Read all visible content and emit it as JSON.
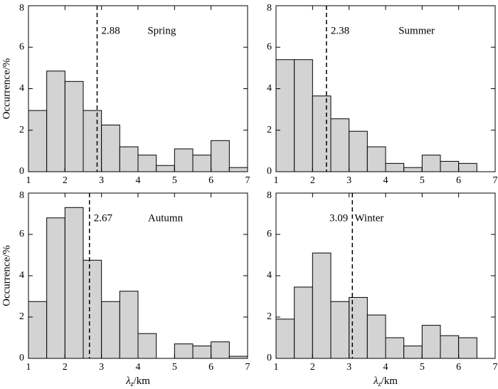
{
  "chart_data": [
    {
      "type": "histogram",
      "title": "Spring",
      "median": 2.88,
      "bins": [
        1,
        1.5,
        2,
        2.5,
        3,
        3.5,
        4,
        4.5,
        5,
        5.5,
        6,
        6.5,
        7
      ],
      "values": [
        2.95,
        4.85,
        4.35,
        2.95,
        2.25,
        1.2,
        0.8,
        0.3,
        1.1,
        0.8,
        1.5,
        0.2
      ],
      "color": "#d3d3d3",
      "ylabel": "Occurrence/%",
      "xlim": [
        1,
        7
      ],
      "ylim": [
        0,
        8
      ],
      "xticks": [
        1,
        2,
        3,
        4,
        5,
        6,
        7
      ],
      "yticks": [
        0,
        2,
        4,
        6,
        8
      ]
    },
    {
      "type": "histogram",
      "title": "Summer",
      "median": 2.38,
      "bins": [
        1,
        1.5,
        2,
        2.5,
        3,
        3.5,
        4,
        4.5,
        5,
        5.5,
        6,
        6.5,
        7
      ],
      "values": [
        5.4,
        5.4,
        3.65,
        2.55,
        1.95,
        1.2,
        0.4,
        0.2,
        0.8,
        0.5,
        0.4,
        0
      ],
      "color": "#d3d3d3",
      "xlim": [
        1,
        7
      ],
      "ylim": [
        0,
        8
      ],
      "xticks": [
        1,
        2,
        3,
        4,
        5,
        6,
        7
      ],
      "yticks": [
        0,
        2,
        4,
        6,
        8
      ]
    },
    {
      "type": "histogram",
      "title": "Autumn",
      "median": 2.67,
      "bins": [
        1,
        1.5,
        2,
        2.5,
        3,
        3.5,
        4,
        4.5,
        5,
        5.5,
        6,
        6.5,
        7
      ],
      "values": [
        2.75,
        6.8,
        7.3,
        4.75,
        2.75,
        3.25,
        1.2,
        0,
        0.7,
        0.6,
        0.8,
        0.1
      ],
      "color": "#d3d3d3",
      "ylabel": "Occurrence/%",
      "xlabel": [
        "λ",
        "z",
        "/km"
      ],
      "xlim": [
        1,
        7
      ],
      "ylim": [
        0,
        8
      ],
      "xticks": [
        1,
        2,
        3,
        4,
        5,
        6,
        7
      ],
      "yticks": [
        0,
        2,
        4,
        6,
        8
      ]
    },
    {
      "type": "histogram",
      "title": "Winter",
      "median": 3.09,
      "bins": [
        1,
        1.5,
        2,
        2.5,
        3,
        3.5,
        4,
        4.5,
        5,
        5.5,
        6,
        6.5,
        7
      ],
      "values": [
        1.9,
        3.45,
        5.1,
        2.75,
        2.95,
        2.1,
        1.0,
        0.6,
        1.6,
        1.1,
        1.0,
        0
      ],
      "color": "#d3d3d3",
      "xlabel": [
        "λ",
        "z",
        "/km"
      ],
      "xlim": [
        1,
        7
      ],
      "ylim": [
        0,
        8
      ],
      "xticks": [
        1,
        2,
        3,
        4,
        5,
        6,
        7
      ],
      "yticks": [
        0,
        2,
        4,
        6,
        8
      ]
    }
  ]
}
